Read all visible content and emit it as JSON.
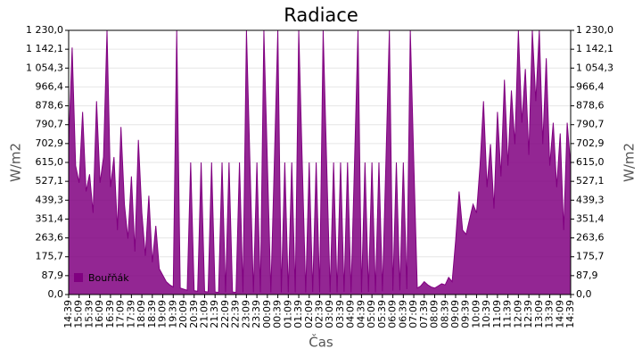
{
  "chart_data": {
    "type": "area",
    "title": "Radiace",
    "x_label": "Čas",
    "y_label": "W/m2",
    "categories": [
      "14:39",
      null,
      null,
      "15:09",
      null,
      null,
      "15:39",
      null,
      null,
      "16:09",
      null,
      null,
      "16:39",
      null,
      null,
      "17:09",
      null,
      null,
      "17:39",
      null,
      null,
      "18:09",
      null,
      null,
      "18:39",
      null,
      null,
      "19:09",
      null,
      null,
      "19:39",
      null,
      null,
      "20:09",
      null,
      null,
      "20:39",
      null,
      null,
      "21:09",
      null,
      null,
      "21:39",
      null,
      null,
      "22:09",
      null,
      null,
      "22:39",
      null,
      null,
      "23:09",
      null,
      null,
      "23:39",
      null,
      null,
      "00:09",
      null,
      null,
      "00:39",
      null,
      null,
      "01:09",
      null,
      null,
      "01:39",
      null,
      null,
      "02:09",
      null,
      null,
      "02:39",
      null,
      null,
      "03:09",
      null,
      null,
      "03:39",
      null,
      null,
      "04:09",
      null,
      null,
      "04:39",
      null,
      null,
      "05:09",
      null,
      null,
      "05:39",
      null,
      null,
      "06:09",
      null,
      null,
      "06:39",
      null,
      null,
      "07:09",
      null,
      null,
      "07:39",
      null,
      null,
      "08:09",
      null,
      null,
      "08:39",
      null,
      null,
      "09:09",
      null,
      null,
      "09:39",
      null,
      null,
      "10:09",
      null,
      null,
      "10:39",
      null,
      null,
      "11:09",
      null,
      null,
      "11:39",
      null,
      null,
      "12:09",
      null,
      null,
      "12:39",
      null,
      null,
      "13:09",
      null,
      null,
      "13:39",
      null,
      null,
      "14:09",
      null,
      null,
      "14:39"
    ],
    "series": [
      {
        "name": "Bouřňák",
        "color": "#800080",
        "values": [
          700,
          1150,
          600,
          520,
          850,
          480,
          560,
          380,
          900,
          520,
          640,
          1230,
          500,
          640,
          300,
          780,
          420,
          260,
          550,
          200,
          720,
          380,
          180,
          460,
          150,
          320,
          120,
          90,
          60,
          45,
          35,
          1230,
          30,
          25,
          20,
          615,
          18,
          15,
          615,
          14,
          12,
          615,
          12,
          10,
          615,
          10,
          615,
          12,
          10,
          615,
          10,
          1230,
          615,
          10,
          615,
          10,
          1230,
          615,
          10,
          615,
          1230,
          10,
          615,
          10,
          615,
          10,
          1230,
          615,
          10,
          615,
          12,
          615,
          10,
          1230,
          615,
          10,
          615,
          10,
          615,
          12,
          615,
          10,
          615,
          1230,
          10,
          615,
          12,
          615,
          10,
          615,
          15,
          615,
          1230,
          18,
          615,
          20,
          615,
          25,
          1230,
          615,
          30,
          40,
          60,
          45,
          35,
          30,
          40,
          50,
          45,
          80,
          60,
          250,
          480,
          300,
          280,
          350,
          420,
          380,
          600,
          900,
          500,
          700,
          400,
          850,
          550,
          1000,
          600,
          950,
          700,
          1230,
          800,
          1050,
          650,
          1230,
          900,
          1230,
          700,
          1100,
          600,
          800,
          500,
          750,
          300,
          800,
          600
        ]
      }
    ],
    "ylim": [
      0,
      1230
    ],
    "yticks": [
      {
        "value": 0,
        "label": "0,0"
      },
      {
        "value": 87.9,
        "label": "87,9"
      },
      {
        "value": 175.7,
        "label": "175,7"
      },
      {
        "value": 263.6,
        "label": "263,6"
      },
      {
        "value": 351.4,
        "label": "351,4"
      },
      {
        "value": 439.3,
        "label": "439,3"
      },
      {
        "value": 527.1,
        "label": "527,1"
      },
      {
        "value": 615,
        "label": "615,0"
      },
      {
        "value": 702.9,
        "label": "702,9"
      },
      {
        "value": 790.7,
        "label": "790,7"
      },
      {
        "value": 878.6,
        "label": "878,6"
      },
      {
        "value": 966.4,
        "label": "966,4"
      },
      {
        "value": 1054.3,
        "label": "1 054,3"
      },
      {
        "value": 1142.1,
        "label": "1 142,1"
      },
      {
        "value": 1230,
        "label": "1 230,0"
      }
    ],
    "grid": true,
    "legend": "bottom-left"
  }
}
